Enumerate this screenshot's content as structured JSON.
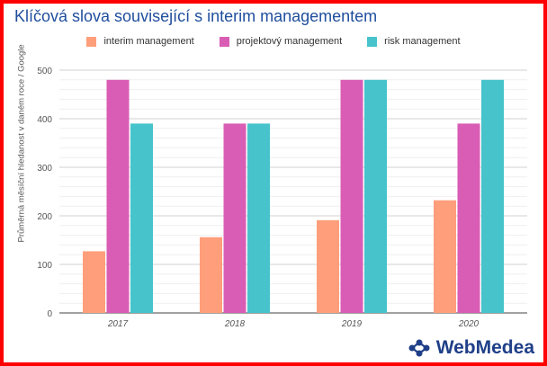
{
  "chart_data": {
    "type": "bar",
    "title": "Klíčová slova související s interim managementem",
    "ylabel": "Průměrná měsíční hledanost v daném roce / Google",
    "xlabel": "",
    "categories": [
      "2017",
      "2018",
      "2019",
      "2020"
    ],
    "series": [
      {
        "name": "interim management",
        "color": "#ff9e7b",
        "values": [
          127,
          156,
          191,
          232
        ]
      },
      {
        "name": "projektový management",
        "color": "#d95db5",
        "values": [
          480,
          390,
          480,
          390
        ]
      },
      {
        "name": "risk management",
        "color": "#46c3cb",
        "values": [
          390,
          390,
          480,
          480
        ]
      }
    ],
    "ylim": [
      0,
      500
    ],
    "yticks": [
      "0",
      "100",
      "200",
      "300",
      "400",
      "500"
    ],
    "grid": true,
    "legend_position": "top"
  },
  "brand": {
    "name": "WebMedea",
    "icon": "network-icon",
    "color": "#1f3f88"
  },
  "frame_color": "#ff0000"
}
